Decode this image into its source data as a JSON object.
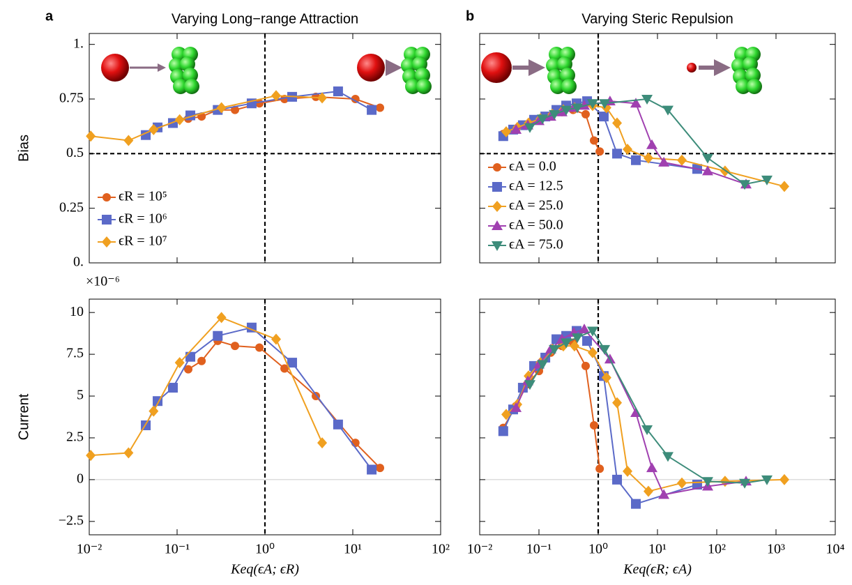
{
  "chart_data": [
    {
      "type": "line",
      "panel_label": "a",
      "title": "Varying Long−range Attraction",
      "ylabel": "Bias",
      "log_x": true,
      "xlim": [
        0.01,
        100
      ],
      "ylim": [
        0,
        1.05
      ],
      "xticks": [
        0.01,
        0.1,
        1,
        10,
        100
      ],
      "xtick_labels": false,
      "yticks": [
        {
          "value": 0,
          "label": "0."
        },
        0.25,
        0.5,
        0.75,
        {
          "value": 1,
          "label": "1."
        }
      ],
      "vline": 1,
      "hline": 0.5,
      "hline_dashed": true,
      "legend": "lower left",
      "series": [
        {
          "name": "ϵR = 10⁵",
          "color": "#e0601e",
          "marker": "circle",
          "x": [
            0.134,
            0.19,
            0.29,
            0.456,
            0.865,
            1.67,
            3.8,
            10.7,
            20.4
          ],
          "values": [
            0.66,
            0.67,
            0.7,
            0.7,
            0.73,
            0.75,
            0.76,
            0.75,
            0.71
          ]
        },
        {
          "name": "ϵR = 10⁶",
          "color": "#5b6ac8",
          "marker": "square",
          "x": [
            0.044,
            0.06,
            0.0896,
            0.1416,
            0.29,
            0.706,
            2.04,
            6.8,
            16.4
          ],
          "values": [
            0.585,
            0.62,
            0.64,
            0.675,
            0.7,
            0.73,
            0.76,
            0.785,
            0.7
          ]
        },
        {
          "name": "ϵR = 10⁷",
          "color": "#f0a020",
          "marker": "diamond",
          "x": [
            0.0104,
            0.028,
            0.054,
            0.107,
            0.32,
            1.34,
            4.48
          ],
          "values": [
            0.58,
            0.56,
            0.61,
            0.655,
            0.71,
            0.765,
            0.755
          ]
        }
      ]
    },
    {
      "type": "line",
      "panel_label": "b",
      "title": "Varying Steric Repulsion",
      "log_x": true,
      "xlim": [
        0.01,
        10000
      ],
      "ylim": [
        0,
        1.05
      ],
      "xticks": [
        0.01,
        0.1,
        1,
        10,
        100,
        1000,
        10000
      ],
      "xtick_labels": false,
      "yticks": [
        0,
        0.25,
        0.5,
        0.75,
        1
      ],
      "ytick_labels": false,
      "vline": 1,
      "hline": 0.5,
      "hline_dashed": true,
      "legend": "lower left",
      "series": [
        {
          "name": "ϵA = 0.0",
          "color": "#e0601e",
          "marker": "circle",
          "x": [
            0.025,
            0.041,
            0.063,
            0.1,
            0.158,
            0.244,
            0.377,
            0.614,
            0.85,
            1.06
          ],
          "values": [
            0.59,
            0.61,
            0.63,
            0.655,
            0.67,
            0.69,
            0.7,
            0.68,
            0.56,
            0.51
          ]
        },
        {
          "name": "ϵA = 12.5",
          "color": "#5b6ac8",
          "marker": "square",
          "x": [
            0.025,
            0.0367,
            0.0535,
            0.0828,
            0.128,
            0.197,
            0.288,
            0.432,
            0.649,
            1.24,
            2.08,
            4.32,
            46.8
          ],
          "values": [
            0.58,
            0.61,
            0.63,
            0.655,
            0.67,
            0.7,
            0.72,
            0.73,
            0.74,
            0.67,
            0.5,
            0.47,
            0.43
          ]
        },
        {
          "name": "ϵA = 25.0",
          "color": "#f0a020",
          "marker": "diamond",
          "x": [
            0.028,
            0.0432,
            0.0667,
            0.106,
            0.168,
            0.258,
            0.398,
            0.805,
            1.38,
            2.08,
            3.12,
            7.03,
            25.8,
            138,
            1384
          ],
          "values": [
            0.6,
            0.62,
            0.64,
            0.66,
            0.68,
            0.7,
            0.71,
            0.72,
            0.71,
            0.64,
            0.52,
            0.48,
            0.47,
            0.42,
            0.35
          ]
        },
        {
          "name": "ϵA = 50.0",
          "color": "#a040b0",
          "marker": "triangle-up",
          "x": [
            0.041,
            0.0649,
            0.1,
            0.158,
            0.244,
            0.387,
            0.582,
            1.58,
            4.32,
            8.05,
            12.8,
            70.3,
            312
          ],
          "values": [
            0.61,
            0.63,
            0.65,
            0.67,
            0.69,
            0.71,
            0.72,
            0.74,
            0.73,
            0.54,
            0.46,
            0.42,
            0.36
          ]
        },
        {
          "name": "ϵA = 75.0",
          "color": "#3d8c7a",
          "marker": "triangle-down",
          "x": [
            0.0703,
            0.115,
            0.182,
            0.288,
            0.444,
            0.805,
            1.28,
            6.67,
            15,
            70.3,
            296,
            703
          ],
          "values": [
            0.62,
            0.66,
            0.68,
            0.7,
            0.71,
            0.73,
            0.73,
            0.75,
            0.7,
            0.48,
            0.36,
            0.38
          ]
        }
      ]
    },
    {
      "type": "line",
      "ylabel": "Current",
      "y_multiplier": "×10⁻⁶",
      "xlabel": "Keq(ϵA; ϵR)",
      "log_x": true,
      "xlim": [
        0.01,
        100
      ],
      "ylim": [
        -3.3,
        10.8
      ],
      "xticks": [
        {
          "value": 0.01,
          "label": "10⁻²"
        },
        {
          "value": 0.1,
          "label": "10⁻¹"
        },
        {
          "value": 1,
          "label": "10⁰"
        },
        {
          "value": 10,
          "label": "10¹"
        },
        {
          "value": 100,
          "label": "10²"
        }
      ],
      "yticks": [
        {
          "value": -2.5,
          "label": "−2.5"
        },
        0,
        2.5,
        5,
        7.5,
        10
      ],
      "vline": 1,
      "hline": 0,
      "hline_dashed": false,
      "series": [
        {
          "color": "#e0601e",
          "marker": "circle",
          "x": [
            0.134,
            0.19,
            0.29,
            0.456,
            0.865,
            1.67,
            3.8,
            10.7,
            20.4
          ],
          "values": [
            6.6,
            7.1,
            8.3,
            8.0,
            7.9,
            6.65,
            5.0,
            2.2,
            0.7
          ]
        },
        {
          "color": "#5b6ac8",
          "marker": "square",
          "x": [
            0.044,
            0.06,
            0.0896,
            0.1416,
            0.29,
            0.706,
            2.04,
            6.8,
            16.4
          ],
          "values": [
            3.25,
            4.7,
            5.5,
            7.35,
            8.6,
            9.1,
            7.0,
            3.3,
            0.6
          ]
        },
        {
          "color": "#f0a020",
          "marker": "diamond",
          "x": [
            0.0104,
            0.028,
            0.054,
            0.107,
            0.32,
            1.34,
            4.48
          ],
          "values": [
            1.45,
            1.6,
            4.1,
            7.0,
            9.7,
            8.4,
            2.2
          ]
        }
      ]
    },
    {
      "type": "line",
      "xlabel": "Keq(ϵR; ϵA)",
      "log_x": true,
      "xlim": [
        0.01,
        10000
      ],
      "ylim": [
        -3.3,
        10.8
      ],
      "xticks": [
        {
          "value": 0.01,
          "label": "10⁻²"
        },
        {
          "value": 0.1,
          "label": "10⁻¹"
        },
        {
          "value": 1,
          "label": "10⁰"
        },
        {
          "value": 10,
          "label": "10¹"
        },
        {
          "value": 100,
          "label": "10²"
        },
        {
          "value": 1000,
          "label": "10³"
        },
        {
          "value": 10000,
          "label": "10⁴"
        }
      ],
      "yticks": [
        -2.5,
        0,
        2.5,
        5,
        7.5,
        10
      ],
      "ytick_labels": false,
      "vline": 1,
      "hline": 0,
      "hline_dashed": false,
      "series": [
        {
          "color": "#e0601e",
          "marker": "circle",
          "x": [
            0.025,
            0.041,
            0.063,
            0.1,
            0.158,
            0.244,
            0.377,
            0.614,
            0.85,
            1.06
          ],
          "values": [
            3.1,
            4.4,
            5.7,
            6.5,
            7.6,
            8.0,
            8.2,
            6.8,
            3.25,
            0.65
          ]
        },
        {
          "color": "#5b6ac8",
          "marker": "square",
          "x": [
            0.025,
            0.0367,
            0.0535,
            0.0828,
            0.128,
            0.197,
            0.288,
            0.432,
            0.649,
            1.24,
            2.08,
            4.32,
            46.8
          ],
          "values": [
            2.9,
            4.2,
            5.5,
            6.8,
            7.3,
            8.4,
            8.6,
            8.9,
            8.3,
            6.2,
            0.0,
            -1.45,
            -0.3
          ]
        },
        {
          "color": "#f0a020",
          "marker": "diamond",
          "x": [
            0.028,
            0.0432,
            0.0667,
            0.106,
            0.168,
            0.258,
            0.398,
            0.805,
            1.38,
            2.08,
            3.12,
            7.03,
            25.8,
            138,
            1384
          ],
          "values": [
            3.9,
            4.5,
            6.2,
            7.0,
            7.8,
            8.0,
            8.0,
            7.6,
            6.1,
            4.6,
            0.5,
            -0.7,
            -0.2,
            -0.1,
            0.0
          ]
        },
        {
          "color": "#a040b0",
          "marker": "triangle-up",
          "x": [
            0.041,
            0.0649,
            0.1,
            0.158,
            0.244,
            0.387,
            0.582,
            1.58,
            4.32,
            8.05,
            12.8,
            70.3,
            312
          ],
          "values": [
            4.3,
            5.9,
            6.9,
            7.8,
            8.4,
            8.8,
            9.0,
            7.2,
            4.0,
            0.7,
            -0.9,
            -0.4,
            -0.1
          ]
        },
        {
          "color": "#3d8c7a",
          "marker": "triangle-down",
          "x": [
            0.0703,
            0.115,
            0.182,
            0.288,
            0.444,
            0.805,
            1.28,
            6.67,
            15,
            70.3,
            296,
            703
          ],
          "values": [
            5.7,
            6.9,
            7.8,
            8.2,
            8.5,
            8.9,
            7.8,
            3.0,
            1.4,
            -0.1,
            -0.2,
            0.0
          ]
        }
      ]
    }
  ]
}
